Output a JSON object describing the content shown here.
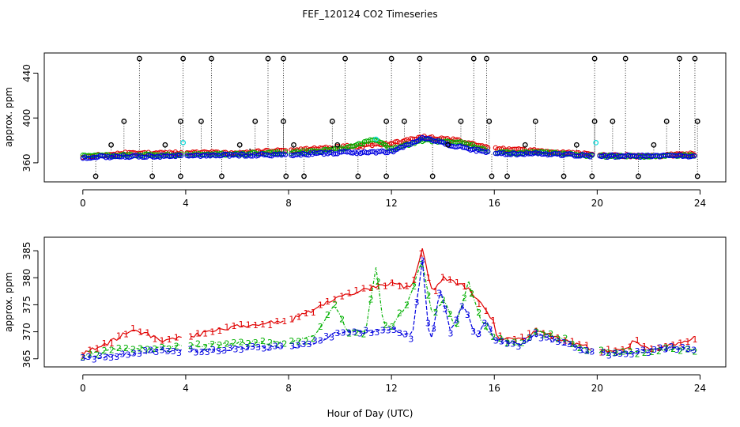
{
  "title": "FEF_120124  CO2 Timeseries",
  "xlabel": "Hour of Day (UTC)",
  "colors": {
    "series1": "#e00000",
    "series2": "#00b000",
    "series3": "#0000e0",
    "cyan": "#00d8d8",
    "black": "#000000"
  },
  "chart_data": [
    {
      "type": "scatter",
      "name": "top-panel",
      "ylabel": "approx. ppm",
      "xlim": [
        -1.5,
        25.0
      ],
      "ylim": [
        343,
        458
      ],
      "xticks": [
        0,
        4,
        8,
        12,
        16,
        20,
        24
      ],
      "yticks": [
        360,
        400,
        440
      ],
      "gaps": [
        [
          3.9,
          4.05
        ],
        [
          7.9,
          8.05
        ],
        [
          15.8,
          16.0
        ],
        [
          19.85,
          20.05
        ]
      ],
      "spikes_high": [
        2.2,
        3.9,
        5.0,
        7.2,
        7.8,
        10.2,
        12.0,
        13.1,
        15.2,
        15.7,
        19.9,
        21.1,
        23.2,
        23.8
      ],
      "spikes_mid": [
        1.6,
        3.8,
        4.6,
        6.7,
        7.8,
        9.7,
        11.8,
        12.5,
        14.7,
        15.8,
        17.6,
        19.9,
        20.6,
        22.7,
        23.9
      ],
      "spikes_low": [
        0.5,
        2.7,
        3.8,
        5.4,
        7.9,
        8.6,
        10.7,
        11.8,
        13.6,
        15.9,
        16.5,
        18.7,
        19.8,
        21.6,
        23.9
      ],
      "spikes_small": [
        1.1,
        3.2,
        6.1,
        8.2,
        9.9,
        14.2,
        17.2,
        19.2,
        22.2
      ],
      "spike_values": {
        "high": 453,
        "mid": 397,
        "low": 348,
        "small": 376
      },
      "cyan_points": [
        [
          3.9,
          378
        ],
        [
          11.4,
          381
        ],
        [
          19.95,
          378
        ]
      ],
      "annotation_dots": [
        [
          6.5,
          372
        ],
        [
          9.7,
          374
        ],
        [
          15.0,
          373
        ]
      ],
      "series": [
        {
          "name": "1",
          "anchors": [
            [
              0,
              366
            ],
            [
              2,
              369
            ],
            [
              4,
              369
            ],
            [
              6,
              369
            ],
            [
              8,
              371
            ],
            [
              10,
              374
            ],
            [
              12,
              377
            ],
            [
              13.2,
              383
            ],
            [
              14.5,
              380
            ],
            [
              16,
              373
            ],
            [
              18,
              370
            ],
            [
              20,
              367
            ],
            [
              22,
              366
            ],
            [
              23.8,
              368
            ]
          ]
        },
        {
          "name": "2",
          "anchors": [
            [
              0,
              366
            ],
            [
              2,
              367
            ],
            [
              4,
              367
            ],
            [
              6,
              368
            ],
            [
              8,
              369
            ],
            [
              10,
              372
            ],
            [
              11.4,
              381
            ],
            [
              12,
              372
            ],
            [
              13.2,
              380
            ],
            [
              14.8,
              378
            ],
            [
              16,
              369
            ],
            [
              18,
              369
            ],
            [
              20,
              366
            ],
            [
              22,
              366
            ],
            [
              23.8,
              367
            ]
          ]
        },
        {
          "name": "3",
          "anchors": [
            [
              0,
              365
            ],
            [
              2,
              366
            ],
            [
              4,
              366
            ],
            [
              6,
              367
            ],
            [
              8,
              367
            ],
            [
              10,
              369
            ],
            [
              12,
              370
            ],
            [
              13.2,
              382
            ],
            [
              14.5,
              375
            ],
            [
              16,
              368
            ],
            [
              18,
              368
            ],
            [
              20,
              366
            ],
            [
              22,
              366
            ],
            [
              23.8,
              366
            ]
          ]
        }
      ]
    },
    {
      "type": "line",
      "name": "bottom-panel",
      "ylabel": "approx. ppm",
      "xlim": [
        -1.5,
        25.0
      ],
      "ylim": [
        363.5,
        387.5
      ],
      "xticks": [
        0,
        4,
        8,
        12,
        16,
        20,
        24
      ],
      "yticks": [
        365,
        370,
        375,
        380,
        385
      ],
      "gaps": [
        [
          3.9,
          4.1
        ],
        [
          7.9,
          8.1
        ],
        [
          19.8,
          20.1
        ]
      ],
      "series": [
        {
          "name": "1",
          "marker": "1",
          "anchors": [
            [
              0,
              366
            ],
            [
              1,
              368
            ],
            [
              2,
              370.5
            ],
            [
              3,
              368.5
            ],
            [
              4,
              369
            ],
            [
              5,
              370
            ],
            [
              6,
              371
            ],
            [
              7,
              371.5
            ],
            [
              8,
              372
            ],
            [
              9,
              374
            ],
            [
              10,
              376.5
            ],
            [
              11,
              378
            ],
            [
              12,
              379
            ],
            [
              12.8,
              378
            ],
            [
              13.2,
              385.5
            ],
            [
              13.6,
              377
            ],
            [
              14,
              380
            ],
            [
              15,
              378
            ],
            [
              16,
              372
            ],
            [
              16.1,
              369
            ],
            [
              17,
              368.5
            ],
            [
              17.6,
              370
            ],
            [
              18,
              369.5
            ],
            [
              19,
              368
            ],
            [
              19.7,
              367
            ],
            [
              20.2,
              366.5
            ],
            [
              21,
              366.5
            ],
            [
              21.5,
              368.5
            ],
            [
              22,
              366.5
            ],
            [
              23,
              367.5
            ],
            [
              23.8,
              369
            ]
          ]
        },
        {
          "name": "2",
          "marker": "2",
          "anchors": [
            [
              0,
              365.5
            ],
            [
              1,
              366.5
            ],
            [
              2,
              367
            ],
            [
              3,
              367
            ],
            [
              4,
              367.5
            ],
            [
              5,
              367.5
            ],
            [
              6,
              368
            ],
            [
              7,
              368
            ],
            [
              8,
              368
            ],
            [
              9,
              369
            ],
            [
              9.8,
              375
            ],
            [
              10.3,
              370
            ],
            [
              11,
              370
            ],
            [
              11.4,
              382
            ],
            [
              11.7,
              371
            ],
            [
              12,
              371
            ],
            [
              12.6,
              375
            ],
            [
              13.2,
              383
            ],
            [
              13.6,
              373
            ],
            [
              14,
              376
            ],
            [
              14.5,
              371
            ],
            [
              15,
              379
            ],
            [
              15.5,
              372
            ],
            [
              16,
              369
            ],
            [
              17,
              367.5
            ],
            [
              17.6,
              370
            ],
            [
              18.5,
              369
            ],
            [
              19,
              368
            ],
            [
              19.7,
              366.5
            ],
            [
              20.2,
              366.5
            ],
            [
              21,
              366
            ],
            [
              22,
              366.5
            ],
            [
              23,
              367
            ],
            [
              23.8,
              366.5
            ]
          ]
        },
        {
          "name": "3",
          "marker": "3",
          "anchors": [
            [
              0,
              365
            ],
            [
              1,
              365.5
            ],
            [
              2,
              366
            ],
            [
              3,
              366.5
            ],
            [
              4,
              366.5
            ],
            [
              5,
              366.5
            ],
            [
              6,
              367
            ],
            [
              7,
              367
            ],
            [
              8,
              367
            ],
            [
              9,
              368
            ],
            [
              10,
              370
            ],
            [
              11,
              370
            ],
            [
              12,
              370.5
            ],
            [
              12.8,
              369
            ],
            [
              13.2,
              383
            ],
            [
              13.5,
              367
            ],
            [
              13.9,
              378
            ],
            [
              14.3,
              370
            ],
            [
              14.8,
              375
            ],
            [
              15.3,
              369
            ],
            [
              15.7,
              372
            ],
            [
              16,
              368.5
            ],
            [
              17,
              367.5
            ],
            [
              17.6,
              369.5
            ],
            [
              18.5,
              368
            ],
            [
              19,
              367.5
            ],
            [
              19.7,
              366
            ],
            [
              20.2,
              366
            ],
            [
              21,
              366
            ],
            [
              22,
              366.5
            ],
            [
              23,
              367
            ],
            [
              23.8,
              366.5
            ]
          ]
        }
      ]
    }
  ]
}
